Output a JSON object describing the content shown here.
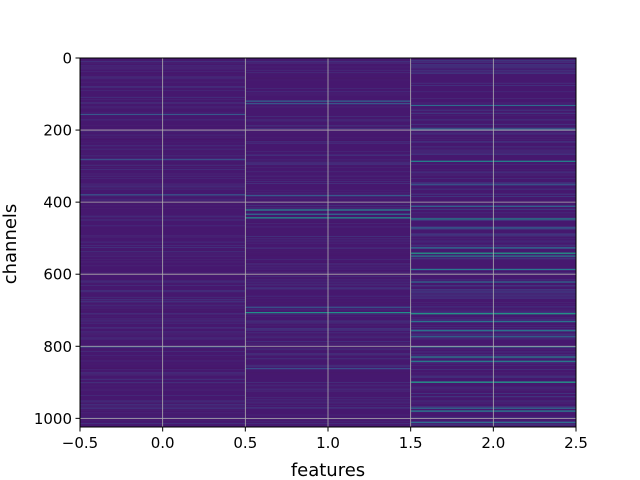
{
  "chart_data": {
    "type": "heatmap",
    "title": "",
    "xlabel": "features",
    "ylabel": "channels",
    "xlim": [
      -0.5,
      2.5
    ],
    "ylim": [
      1024,
      0
    ],
    "y_inverted": true,
    "grid": true,
    "colormap": "viridis",
    "num_columns": 3,
    "num_rows": 1024,
    "base_color": "#46186f",
    "x_ticks": [
      -0.5,
      0.0,
      0.5,
      1.0,
      1.5,
      2.0,
      2.5
    ],
    "x_tick_labels": [
      "−0.5",
      "0.0",
      "0.5",
      "1.0",
      "1.5",
      "2.0",
      "2.5"
    ],
    "y_ticks": [
      0,
      200,
      400,
      600,
      800,
      1000
    ],
    "y_tick_labels": [
      "0",
      "200",
      "400",
      "600",
      "800",
      "1000"
    ],
    "bright_rows": [
      {
        "column": 0,
        "row": 155,
        "level": 0.35
      },
      {
        "column": 0,
        "row": 280,
        "level": 0.3
      },
      {
        "column": 0,
        "row": 378,
        "level": 0.35
      },
      {
        "column": 0,
        "row": 800,
        "level": 0.3
      },
      {
        "column": 1,
        "row": 118,
        "level": 0.4
      },
      {
        "column": 1,
        "row": 125,
        "level": 0.35
      },
      {
        "column": 1,
        "row": 380,
        "level": 0.35
      },
      {
        "column": 1,
        "row": 420,
        "level": 0.6
      },
      {
        "column": 1,
        "row": 432,
        "level": 0.45
      },
      {
        "column": 1,
        "row": 442,
        "level": 0.65
      },
      {
        "column": 1,
        "row": 690,
        "level": 0.35
      },
      {
        "column": 1,
        "row": 705,
        "level": 0.65
      },
      {
        "column": 1,
        "row": 860,
        "level": 0.3
      },
      {
        "column": 2,
        "row": 130,
        "level": 0.45
      },
      {
        "column": 2,
        "row": 195,
        "level": 0.4
      },
      {
        "column": 2,
        "row": 285,
        "level": 0.6
      },
      {
        "column": 2,
        "row": 350,
        "level": 0.35
      },
      {
        "column": 2,
        "row": 410,
        "level": 0.4
      },
      {
        "column": 2,
        "row": 445,
        "level": 0.6
      },
      {
        "column": 2,
        "row": 470,
        "level": 0.4
      },
      {
        "column": 2,
        "row": 525,
        "level": 0.45
      },
      {
        "column": 2,
        "row": 540,
        "level": 0.7
      },
      {
        "column": 2,
        "row": 548,
        "level": 0.55
      },
      {
        "column": 2,
        "row": 585,
        "level": 0.5
      },
      {
        "column": 2,
        "row": 620,
        "level": 0.45
      },
      {
        "column": 2,
        "row": 708,
        "level": 0.7
      },
      {
        "column": 2,
        "row": 730,
        "level": 0.5
      },
      {
        "column": 2,
        "row": 755,
        "level": 0.5
      },
      {
        "column": 2,
        "row": 772,
        "level": 0.45
      },
      {
        "column": 2,
        "row": 800,
        "level": 0.45
      },
      {
        "column": 2,
        "row": 828,
        "level": 0.55
      },
      {
        "column": 2,
        "row": 840,
        "level": 0.55
      },
      {
        "column": 2,
        "row": 898,
        "level": 0.7
      },
      {
        "column": 2,
        "row": 970,
        "level": 0.45
      },
      {
        "column": 2,
        "row": 978,
        "level": 0.55
      },
      {
        "column": 2,
        "row": 1010,
        "level": 0.45
      }
    ]
  }
}
